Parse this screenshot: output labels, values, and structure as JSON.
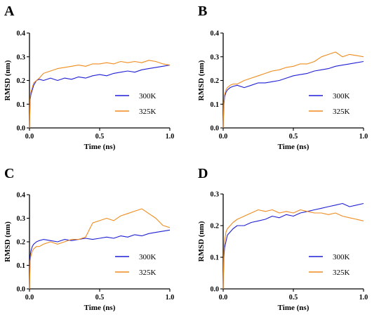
{
  "chart_data": [
    {
      "panel": "A",
      "type": "line",
      "xlabel": "Time (ns)",
      "ylabel": "RMSD (nm)",
      "xlim": [
        0,
        1.0
      ],
      "ylim": [
        0,
        0.4
      ],
      "xticks": [
        "0.0",
        "0.5",
        "1.0"
      ],
      "yticks": [
        "0.0",
        "0.1",
        "0.2",
        "0.3",
        "0.4"
      ],
      "legend": "bottom-right",
      "series": [
        {
          "name": "300K",
          "color": "#1f1fd6",
          "x": [
            0,
            0.005,
            0.01,
            0.02,
            0.03,
            0.05,
            0.07,
            0.1,
            0.15,
            0.2,
            0.25,
            0.3,
            0.35,
            0.4,
            0.45,
            0.5,
            0.55,
            0.6,
            0.65,
            0.7,
            0.75,
            0.8,
            0.85,
            0.9,
            0.95,
            1.0
          ],
          "y": [
            0.0,
            0.12,
            0.14,
            0.16,
            0.18,
            0.2,
            0.205,
            0.2,
            0.21,
            0.2,
            0.21,
            0.205,
            0.215,
            0.21,
            0.22,
            0.225,
            0.22,
            0.23,
            0.235,
            0.24,
            0.235,
            0.245,
            0.25,
            0.255,
            0.26,
            0.265
          ]
        },
        {
          "name": "325K",
          "color": "#f08c1e",
          "x": [
            0,
            0.005,
            0.01,
            0.02,
            0.03,
            0.05,
            0.07,
            0.1,
            0.15,
            0.2,
            0.25,
            0.3,
            0.35,
            0.4,
            0.45,
            0.5,
            0.55,
            0.6,
            0.65,
            0.7,
            0.75,
            0.8,
            0.85,
            0.9,
            0.95,
            1.0
          ],
          "y": [
            0.0,
            0.13,
            0.15,
            0.17,
            0.19,
            0.2,
            0.21,
            0.23,
            0.24,
            0.25,
            0.255,
            0.26,
            0.265,
            0.26,
            0.27,
            0.27,
            0.275,
            0.27,
            0.28,
            0.275,
            0.28,
            0.275,
            0.285,
            0.28,
            0.27,
            0.265
          ]
        }
      ]
    },
    {
      "panel": "B",
      "type": "line",
      "xlabel": "Time (ns)",
      "ylabel": "RMSD (nm)",
      "xlim": [
        0,
        1.0
      ],
      "ylim": [
        0,
        0.4
      ],
      "xticks": [
        "0.0",
        "0.5",
        "1.0"
      ],
      "yticks": [
        "0.0",
        "0.1",
        "0.2",
        "0.3",
        "0.4"
      ],
      "legend": "bottom-right",
      "series": [
        {
          "name": "300K",
          "color": "#1f1fd6",
          "x": [
            0,
            0.005,
            0.01,
            0.02,
            0.03,
            0.05,
            0.07,
            0.1,
            0.15,
            0.2,
            0.25,
            0.3,
            0.35,
            0.4,
            0.45,
            0.5,
            0.55,
            0.6,
            0.65,
            0.7,
            0.75,
            0.8,
            0.85,
            0.9,
            0.95,
            1.0
          ],
          "y": [
            0.0,
            0.1,
            0.13,
            0.15,
            0.16,
            0.17,
            0.175,
            0.18,
            0.17,
            0.18,
            0.19,
            0.19,
            0.195,
            0.2,
            0.21,
            0.22,
            0.225,
            0.23,
            0.24,
            0.245,
            0.25,
            0.26,
            0.265,
            0.27,
            0.275,
            0.28
          ]
        },
        {
          "name": "325K",
          "color": "#f08c1e",
          "x": [
            0,
            0.005,
            0.01,
            0.02,
            0.03,
            0.05,
            0.07,
            0.1,
            0.15,
            0.2,
            0.25,
            0.3,
            0.35,
            0.4,
            0.45,
            0.5,
            0.55,
            0.6,
            0.65,
            0.7,
            0.75,
            0.8,
            0.85,
            0.9,
            0.95,
            1.0
          ],
          "y": [
            0.0,
            0.11,
            0.14,
            0.16,
            0.17,
            0.18,
            0.185,
            0.185,
            0.2,
            0.21,
            0.22,
            0.23,
            0.24,
            0.245,
            0.255,
            0.26,
            0.27,
            0.27,
            0.28,
            0.3,
            0.31,
            0.32,
            0.3,
            0.31,
            0.305,
            0.3
          ]
        }
      ]
    },
    {
      "panel": "C",
      "type": "line",
      "xlabel": "Time (ns)",
      "ylabel": "RMSD (nm)",
      "xlim": [
        0,
        1.0
      ],
      "ylim": [
        0,
        0.4
      ],
      "xticks": [
        "0.0",
        "0.5",
        "1.0"
      ],
      "yticks": [
        "0.0",
        "0.1",
        "0.2",
        "0.3",
        "0.4"
      ],
      "legend": "bottom-right",
      "series": [
        {
          "name": "300K",
          "color": "#1f1fd6",
          "x": [
            0,
            0.005,
            0.01,
            0.02,
            0.03,
            0.05,
            0.07,
            0.1,
            0.15,
            0.2,
            0.25,
            0.3,
            0.35,
            0.4,
            0.45,
            0.5,
            0.55,
            0.6,
            0.65,
            0.7,
            0.75,
            0.8,
            0.85,
            0.9,
            0.95,
            1.0
          ],
          "y": [
            0.0,
            0.14,
            0.16,
            0.18,
            0.19,
            0.2,
            0.205,
            0.21,
            0.205,
            0.2,
            0.21,
            0.205,
            0.21,
            0.215,
            0.21,
            0.215,
            0.22,
            0.215,
            0.225,
            0.22,
            0.23,
            0.225,
            0.235,
            0.24,
            0.245,
            0.25
          ]
        },
        {
          "name": "325K",
          "color": "#f08c1e",
          "x": [
            0,
            0.005,
            0.01,
            0.02,
            0.03,
            0.05,
            0.07,
            0.1,
            0.15,
            0.2,
            0.25,
            0.3,
            0.35,
            0.4,
            0.45,
            0.5,
            0.55,
            0.6,
            0.65,
            0.7,
            0.75,
            0.8,
            0.85,
            0.9,
            0.95,
            1.0
          ],
          "y": [
            0.0,
            0.12,
            0.14,
            0.16,
            0.17,
            0.18,
            0.18,
            0.19,
            0.2,
            0.19,
            0.2,
            0.21,
            0.21,
            0.22,
            0.28,
            0.29,
            0.3,
            0.29,
            0.31,
            0.32,
            0.33,
            0.34,
            0.32,
            0.3,
            0.27,
            0.26
          ]
        }
      ]
    },
    {
      "panel": "D",
      "type": "line",
      "xlabel": "Time (ns)",
      "ylabel": "RMSD (nm)",
      "xlim": [
        0,
        1.0
      ],
      "ylim": [
        0,
        0.3
      ],
      "xticks": [
        "0.0",
        "0.5",
        "1.0"
      ],
      "yticks": [
        "0.0",
        "0.1",
        "0.2",
        "0.3"
      ],
      "legend": "bottom-right",
      "series": [
        {
          "name": "300K",
          "color": "#1f1fd6",
          "x": [
            0,
            0.005,
            0.01,
            0.02,
            0.03,
            0.05,
            0.07,
            0.1,
            0.15,
            0.2,
            0.25,
            0.3,
            0.35,
            0.4,
            0.45,
            0.5,
            0.55,
            0.6,
            0.65,
            0.7,
            0.75,
            0.8,
            0.85,
            0.9,
            0.95,
            1.0
          ],
          "y": [
            0.0,
            0.1,
            0.13,
            0.15,
            0.17,
            0.18,
            0.19,
            0.2,
            0.2,
            0.21,
            0.215,
            0.22,
            0.23,
            0.225,
            0.235,
            0.23,
            0.24,
            0.245,
            0.25,
            0.255,
            0.26,
            0.265,
            0.27,
            0.26,
            0.265,
            0.27
          ]
        },
        {
          "name": "325K",
          "color": "#f08c1e",
          "x": [
            0,
            0.005,
            0.01,
            0.02,
            0.03,
            0.05,
            0.07,
            0.1,
            0.15,
            0.2,
            0.25,
            0.3,
            0.35,
            0.4,
            0.45,
            0.5,
            0.55,
            0.6,
            0.65,
            0.7,
            0.75,
            0.8,
            0.85,
            0.9,
            0.95,
            1.0
          ],
          "y": [
            0.0,
            0.12,
            0.15,
            0.18,
            0.19,
            0.2,
            0.21,
            0.22,
            0.23,
            0.24,
            0.25,
            0.245,
            0.25,
            0.24,
            0.245,
            0.24,
            0.25,
            0.245,
            0.24,
            0.24,
            0.235,
            0.24,
            0.23,
            0.225,
            0.22,
            0.215
          ]
        }
      ]
    }
  ]
}
